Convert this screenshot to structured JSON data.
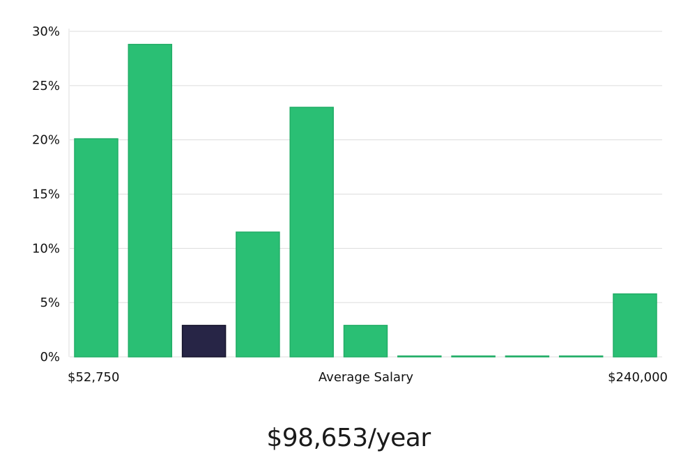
{
  "chart_data": {
    "type": "bar",
    "title": "",
    "xlabel": "Average Salary",
    "ylabel": "",
    "x_min_label": "$52,750",
    "x_max_label": "$240,000",
    "ylim": [
      0,
      30
    ],
    "yticks": [
      0,
      5,
      10,
      15,
      20,
      25,
      30
    ],
    "ytick_labels": [
      "0%",
      "5%",
      "10%",
      "15%",
      "20%",
      "25%",
      "30%"
    ],
    "values": [
      20.1,
      28.8,
      2.9,
      11.5,
      23.0,
      2.9,
      0.0,
      0.0,
      0.0,
      0.0,
      5.8
    ],
    "highlight_index": 2,
    "colors": {
      "bar": "#2abf74",
      "bar_stroke": "#21ad66",
      "highlight": "#272546",
      "highlight_stroke": "#15142b"
    },
    "grid": true
  },
  "summary": {
    "average_salary_text": "$98,653/year"
  }
}
